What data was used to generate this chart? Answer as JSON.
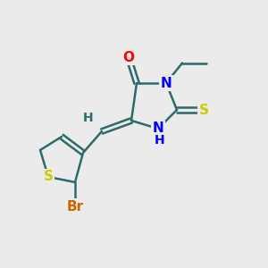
{
  "background_color": "#EBEBEB",
  "bond_color": "#2D6B6B",
  "atom_colors": {
    "O": "#FF0000",
    "N": "#0000FF",
    "S_thio": "#CCCC00",
    "S_ring": "#CCCC00",
    "Br": "#CC6600",
    "H": "#2D6B6B",
    "C": "#2D6B6B"
  },
  "bond_width": 1.8,
  "font_size": 11
}
